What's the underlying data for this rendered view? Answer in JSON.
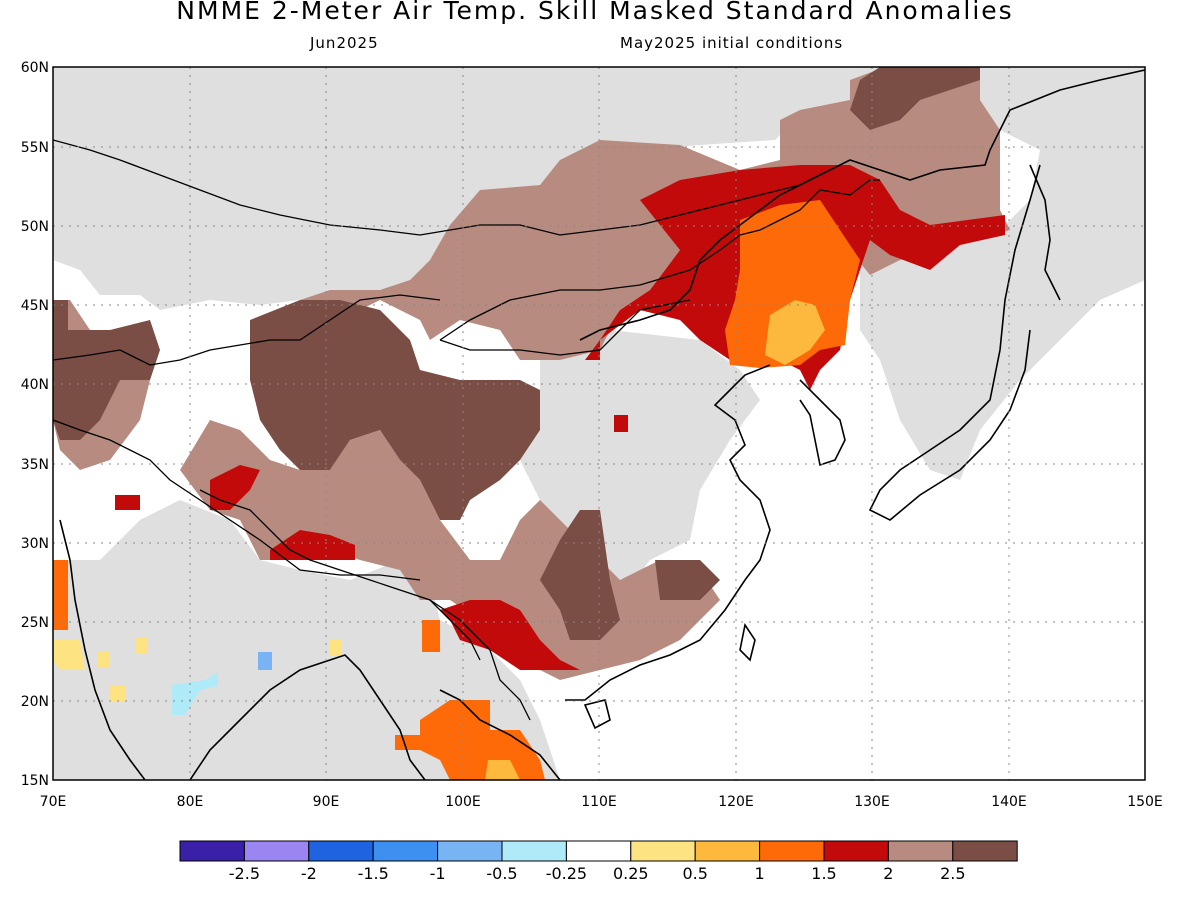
{
  "header": {
    "title": "NMME 2-Meter Air Temp. Skill Masked Standard Anomalies",
    "target_month": "Jun2025",
    "init_text": "May2025 initial conditions"
  },
  "axes": {
    "lat_labels": [
      "60N",
      "55N",
      "50N",
      "45N",
      "40N",
      "35N",
      "30N",
      "25N",
      "20N",
      "15N"
    ],
    "lon_labels": [
      "70E",
      "80E",
      "90E",
      "100E",
      "110E",
      "120E",
      "130E",
      "140E",
      "150E"
    ],
    "lat_range": [
      15,
      60
    ],
    "lon_range": [
      70,
      150
    ],
    "grid": "dotted"
  },
  "colorbar": {
    "colors": [
      "#3a1fa8",
      "#9b85f0",
      "#1e63e0",
      "#3d8ff0",
      "#78b4f3",
      "#aeeaf8",
      "#ffffff",
      "#fde381",
      "#fdb93d",
      "#fd6a07",
      "#c30a0a",
      "#b78b80",
      "#7a4e45"
    ],
    "labels": [
      "-2.5",
      "-2",
      "-1.5",
      "-1",
      "-0.5",
      "-0.25",
      "0.25",
      "0.5",
      "1",
      "1.5",
      "2",
      "2.5"
    ]
  },
  "legend_colors": {
    "land_low_skill": "#dfdfdf",
    "coast": "#000000"
  }
}
